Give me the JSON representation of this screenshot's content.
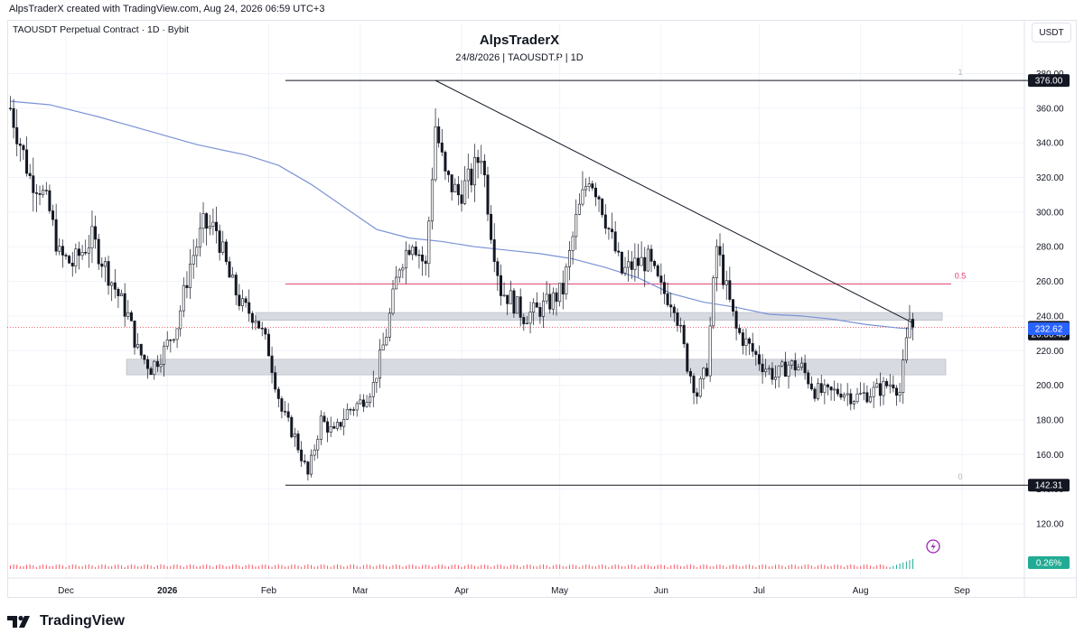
{
  "header": {
    "credit": "AlpsTraderX created with TradingView.com, Aug 24, 2026 06:59 UTC+3",
    "symbol_line": "TAOUSDT Perpetual Contract · 1D · Bybit",
    "currency": "USDT"
  },
  "brand": {
    "logo_icon": "tradingview-logo-icon",
    "logo_text": "TradingView"
  },
  "chart_data": {
    "type": "candlestick",
    "title": "AlpsTraderX",
    "subtitle": "24/8/2026 | TAOUSDT.P | 1D",
    "y_axis": {
      "range": [
        110,
        387
      ],
      "ticks": [
        120,
        140,
        160,
        180,
        200,
        220,
        240,
        260,
        280,
        300,
        320,
        340,
        360,
        380
      ]
    },
    "x_axis": {
      "ticks": [
        {
          "label": "Dec",
          "day": 0
        },
        {
          "label": "2026",
          "day": 31
        },
        {
          "label": "Feb",
          "day": 62
        },
        {
          "label": "Mar",
          "day": 90
        },
        {
          "label": "Apr",
          "day": 121
        },
        {
          "label": "May",
          "day": 151
        },
        {
          "label": "Jun",
          "day": 182
        },
        {
          "label": "Jul",
          "day": 212
        },
        {
          "label": "Aug",
          "day": 243
        },
        {
          "label": "Sep",
          "day": 274
        }
      ]
    },
    "price_labels": [
      {
        "label": "376.00",
        "value": 376.0,
        "style": "dark"
      },
      {
        "label": "233.49",
        "value": 233.49,
        "style": "dark"
      },
      {
        "label": "20:00:40",
        "value": 229.6,
        "style": "dark"
      },
      {
        "label": "232.62",
        "value": 232.62,
        "style": "blue"
      },
      {
        "label": "142.31",
        "value": 142.31,
        "style": "dark"
      }
    ],
    "fib_levels": [
      {
        "label": "1",
        "value": 376.0
      },
      {
        "label": "0.5",
        "value": 258.5
      },
      {
        "label": "0",
        "value": 142.31
      }
    ],
    "zones": [
      {
        "from": 237.5,
        "to": 242.0
      },
      {
        "from": 206.0,
        "to": 215.0
      }
    ],
    "trendline": {
      "from": {
        "day": 113,
        "value": 376.0
      },
      "to": {
        "day": 259,
        "value": 236.0
      }
    },
    "moving_average": {
      "name": "MA",
      "color": "#7b93d6",
      "points": [
        {
          "day": -17,
          "value": 364
        },
        {
          "day": -5,
          "value": 362
        },
        {
          "day": 10,
          "value": 355
        },
        {
          "day": 25,
          "value": 347
        },
        {
          "day": 40,
          "value": 339
        },
        {
          "day": 55,
          "value": 333
        },
        {
          "day": 65,
          "value": 327
        },
        {
          "day": 75,
          "value": 316
        },
        {
          "day": 85,
          "value": 303
        },
        {
          "day": 95,
          "value": 290
        },
        {
          "day": 105,
          "value": 285
        },
        {
          "day": 115,
          "value": 283
        },
        {
          "day": 125,
          "value": 280
        },
        {
          "day": 135,
          "value": 278
        },
        {
          "day": 145,
          "value": 276
        },
        {
          "day": 155,
          "value": 273
        },
        {
          "day": 165,
          "value": 268
        },
        {
          "day": 175,
          "value": 262
        },
        {
          "day": 185,
          "value": 253
        },
        {
          "day": 195,
          "value": 248
        },
        {
          "day": 205,
          "value": 245
        },
        {
          "day": 215,
          "value": 241
        },
        {
          "day": 225,
          "value": 240
        },
        {
          "day": 235,
          "value": 238
        },
        {
          "day": 245,
          "value": 235
        },
        {
          "day": 255,
          "value": 233
        },
        {
          "day": 259,
          "value": 232.6
        }
      ]
    },
    "funding_rate": {
      "label": "0.26%",
      "color": "#22ab94"
    },
    "key_prices": [
      {
        "day": -17,
        "close": 360
      },
      {
        "day": -14,
        "close": 340
      },
      {
        "day": -11,
        "close": 320
      },
      {
        "day": -8,
        "close": 315
      },
      {
        "day": -5,
        "close": 300
      },
      {
        "day": -2,
        "close": 275
      },
      {
        "day": 2,
        "close": 270
      },
      {
        "day": 8,
        "close": 285
      },
      {
        "day": 14,
        "close": 260
      },
      {
        "day": 19,
        "close": 240
      },
      {
        "day": 22,
        "close": 220
      },
      {
        "day": 26,
        "close": 210
      },
      {
        "day": 30,
        "close": 220
      },
      {
        "day": 34,
        "close": 235
      },
      {
        "day": 38,
        "close": 270
      },
      {
        "day": 42,
        "close": 292
      },
      {
        "day": 46,
        "close": 290
      },
      {
        "day": 50,
        "close": 262
      },
      {
        "day": 54,
        "close": 245
      },
      {
        "day": 58,
        "close": 240
      },
      {
        "day": 62,
        "close": 220
      },
      {
        "day": 66,
        "close": 185
      },
      {
        "day": 70,
        "close": 170
      },
      {
        "day": 74,
        "close": 148
      },
      {
        "day": 78,
        "close": 180
      },
      {
        "day": 82,
        "close": 172
      },
      {
        "day": 86,
        "close": 185
      },
      {
        "day": 90,
        "close": 190
      },
      {
        "day": 94,
        "close": 200
      },
      {
        "day": 98,
        "close": 230
      },
      {
        "day": 102,
        "close": 270
      },
      {
        "day": 106,
        "close": 285
      },
      {
        "day": 110,
        "close": 268
      },
      {
        "day": 113,
        "close": 350
      },
      {
        "day": 116,
        "close": 320
      },
      {
        "day": 120,
        "close": 310
      },
      {
        "day": 124,
        "close": 320
      },
      {
        "day": 127,
        "close": 335
      },
      {
        "day": 130,
        "close": 290
      },
      {
        "day": 133,
        "close": 255
      },
      {
        "day": 136,
        "close": 250
      },
      {
        "day": 140,
        "close": 240
      },
      {
        "day": 144,
        "close": 243
      },
      {
        "day": 148,
        "close": 248
      },
      {
        "day": 152,
        "close": 255
      },
      {
        "day": 156,
        "close": 295
      },
      {
        "day": 160,
        "close": 322
      },
      {
        "day": 163,
        "close": 310
      },
      {
        "day": 166,
        "close": 290
      },
      {
        "day": 170,
        "close": 265
      },
      {
        "day": 174,
        "close": 270
      },
      {
        "day": 178,
        "close": 272
      },
      {
        "day": 182,
        "close": 255
      },
      {
        "day": 186,
        "close": 248
      },
      {
        "day": 190,
        "close": 212
      },
      {
        "day": 193,
        "close": 195
      },
      {
        "day": 196,
        "close": 210
      },
      {
        "day": 199,
        "close": 280
      },
      {
        "day": 202,
        "close": 255
      },
      {
        "day": 205,
        "close": 232
      },
      {
        "day": 209,
        "close": 222
      },
      {
        "day": 213,
        "close": 212
      },
      {
        "day": 217,
        "close": 205
      },
      {
        "day": 221,
        "close": 212
      },
      {
        "day": 225,
        "close": 210
      },
      {
        "day": 229,
        "close": 197
      },
      {
        "day": 233,
        "close": 195
      },
      {
        "day": 237,
        "close": 197
      },
      {
        "day": 241,
        "close": 193
      },
      {
        "day": 245,
        "close": 195
      },
      {
        "day": 249,
        "close": 198
      },
      {
        "day": 253,
        "close": 202
      },
      {
        "day": 255,
        "close": 196
      },
      {
        "day": 256,
        "close": 210
      },
      {
        "day": 258,
        "close": 238
      },
      {
        "day": 259,
        "close": 233.49
      }
    ]
  }
}
